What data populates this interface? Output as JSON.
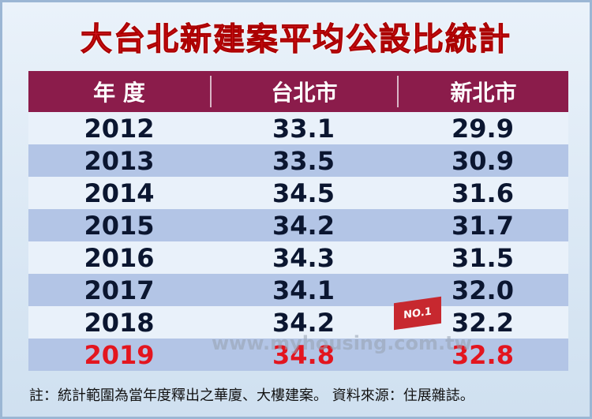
{
  "title": "大台北新建案平均公設比統計",
  "table": {
    "header": [
      "年 度",
      "台北市",
      "新北市"
    ],
    "rows": [
      [
        "2012",
        "33.1",
        "29.9"
      ],
      [
        "2013",
        "33.5",
        "30.9"
      ],
      [
        "2014",
        "34.5",
        "31.6"
      ],
      [
        "2015",
        "34.2",
        "31.7"
      ],
      [
        "2016",
        "34.3",
        "31.5"
      ],
      [
        "2017",
        "34.1",
        "32.0"
      ],
      [
        "2018",
        "34.2",
        "32.2"
      ],
      [
        "2019",
        "34.8",
        "32.8"
      ]
    ]
  },
  "badge": "NO.1",
  "watermark": "www.myhousing.com.tw",
  "note": "註：統計範圍為當年度釋出之華廈、大樓建案。 資料來源：住展雜誌。"
}
